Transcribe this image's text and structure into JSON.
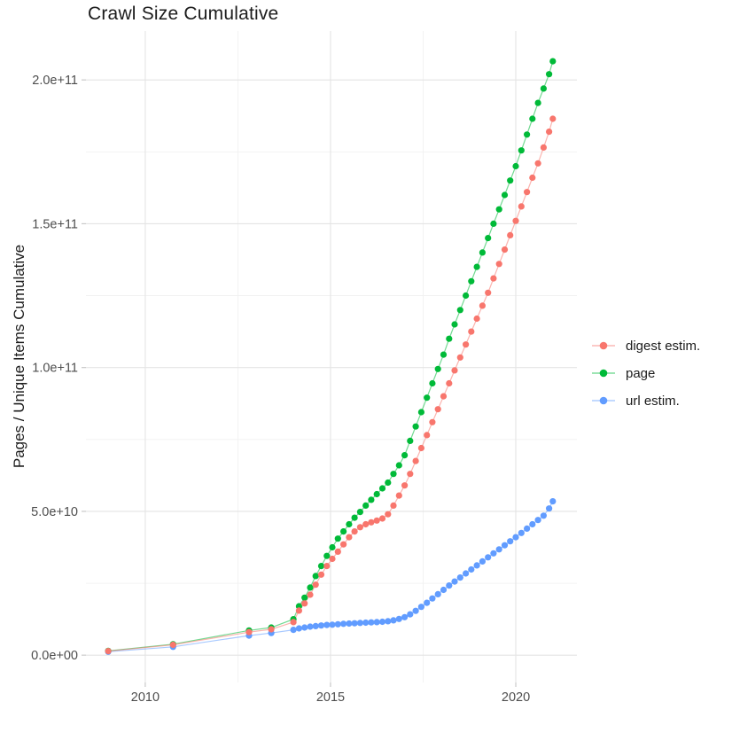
{
  "chart": {
    "title": "Crawl Size Cumulative",
    "ylabel": "Pages / Unique Items Cumulative",
    "xlabel": "",
    "background_color": "#FFFFFF",
    "grid_major_color": "#E4E4E4",
    "grid_minor_color": "#F1F1F1",
    "tick_mark_color": "#C9C9C9",
    "tick_label_color": "#4D4D4D",
    "text_color": "#1C1C1C"
  },
  "chart_data": {
    "type": "scatter",
    "title": "Crawl Size Cumulative",
    "xlabel": "",
    "ylabel": "Pages / Unique Items Cumulative",
    "grid": true,
    "legend_position": "right",
    "xlim": [
      2008.4,
      2021.65
    ],
    "ylim": [
      -9500000000.0,
      217000000000.0
    ],
    "x_ticks": {
      "major": [
        2010,
        2015,
        2020
      ],
      "minor": [
        2012.5,
        2017.5
      ],
      "labels": [
        "2010",
        "2015",
        "2020"
      ]
    },
    "y_ticks": {
      "major": [
        0,
        50000000000.0,
        100000000000.0,
        150000000000.0,
        200000000000.0
      ],
      "minor": [
        25000000000.0,
        75000000000.0,
        125000000000.0,
        175000000000.0
      ],
      "labels": [
        "0.0e+00",
        "5.0e+10",
        "1.0e+11",
        "1.5e+11",
        "2.0e+11"
      ]
    },
    "x": [
      2009.0,
      2010.75,
      2012.8,
      2013.4,
      2014.0,
      2014.15,
      2014.3,
      2014.45,
      2014.6,
      2014.75,
      2014.9,
      2015.05,
      2015.2,
      2015.35,
      2015.5,
      2015.65,
      2015.8,
      2015.95,
      2016.1,
      2016.25,
      2016.4,
      2016.55,
      2016.7,
      2016.85,
      2017.0,
      2017.15,
      2017.3,
      2017.45,
      2017.6,
      2017.75,
      2017.9,
      2018.05,
      2018.2,
      2018.35,
      2018.5,
      2018.65,
      2018.8,
      2018.95,
      2019.1,
      2019.25,
      2019.4,
      2019.55,
      2019.7,
      2019.85,
      2020.0,
      2020.15,
      2020.3,
      2020.45,
      2020.6,
      2020.75,
      2020.9,
      2021.0
    ],
    "series": [
      {
        "name": "digest estim.",
        "color": "#F8766D",
        "values": [
          1400000000.0,
          3600000000.0,
          8000000000.0,
          9000000000.0,
          11500000000.0,
          15500000000.0,
          18000000000.0,
          21000000000.0,
          24500000000.0,
          28000000000.0,
          31000000000.0,
          33500000000.0,
          36000000000.0,
          38500000000.0,
          41000000000.0,
          43000000000.0,
          44500000000.0,
          45500000000.0,
          46200000000.0,
          46800000000.0,
          47500000000.0,
          49000000000.0,
          52000000000.0,
          55500000000.0,
          59000000000.0,
          63000000000.0,
          67500000000.0,
          72000000000.0,
          76500000000.0,
          81000000000.0,
          85500000000.0,
          90000000000.0,
          94500000000.0,
          99000000000.0,
          103500000000.0,
          108000000000.0,
          112500000000.0,
          117000000000.0,
          121500000000.0,
          126000000000.0,
          131000000000.0,
          136000000000.0,
          141000000000.0,
          146000000000.0,
          151000000000.0,
          156000000000.0,
          161000000000.0,
          166000000000.0,
          171000000000.0,
          176500000000.0,
          182000000000.0,
          186500000000.0
        ]
      },
      {
        "name": "page",
        "color": "#00BA38",
        "values": [
          1500000000.0,
          3800000000.0,
          8600000000.0,
          9600000000.0,
          12500000000.0,
          17000000000.0,
          20000000000.0,
          23500000000.0,
          27500000000.0,
          31000000000.0,
          34500000000.0,
          37500000000.0,
          40500000000.0,
          43000000000.0,
          45500000000.0,
          47800000000.0,
          49800000000.0,
          52000000000.0,
          54000000000.0,
          56000000000.0,
          58000000000.0,
          60000000000.0,
          63000000000.0,
          66000000000.0,
          69500000000.0,
          74500000000.0,
          79500000000.0,
          84500000000.0,
          89500000000.0,
          94500000000.0,
          99500000000.0,
          104500000000.0,
          110000000000.0,
          115000000000.0,
          120000000000.0,
          125000000000.0,
          130000000000.0,
          135000000000.0,
          140000000000.0,
          145000000000.0,
          150000000000.0,
          155000000000.0,
          160000000000.0,
          165000000000.0,
          170000000000.0,
          175500000000.0,
          181000000000.0,
          186500000000.0,
          192000000000.0,
          197000000000.0,
          202000000000.0,
          206500000000.0
        ]
      },
      {
        "name": "url estim.",
        "color": "#619CFF",
        "values": [
          1200000000.0,
          2900000000.0,
          6800000000.0,
          7700000000.0,
          8800000000.0,
          9300000000.0,
          9600000000.0,
          9900000000.0,
          10100000000.0,
          10300000000.0,
          10500000000.0,
          10600000000.0,
          10750000000.0,
          10900000000.0,
          11000000000.0,
          11100000000.0,
          11200000000.0,
          11300000000.0,
          11400000000.0,
          11500000000.0,
          11600000000.0,
          11800000000.0,
          12100000000.0,
          12600000000.0,
          13200000000.0,
          14200000000.0,
          15400000000.0,
          16800000000.0,
          18200000000.0,
          19700000000.0,
          21200000000.0,
          22700000000.0,
          24200000000.0,
          25600000000.0,
          27000000000.0,
          28400000000.0,
          29800000000.0,
          31200000000.0,
          32600000000.0,
          34000000000.0,
          35400000000.0,
          36800000000.0,
          38200000000.0,
          39600000000.0,
          41000000000.0,
          42500000000.0,
          44000000000.0,
          45500000000.0,
          47000000000.0,
          48500000000.0,
          51000000000.0,
          53500000000.0
        ]
      }
    ]
  }
}
